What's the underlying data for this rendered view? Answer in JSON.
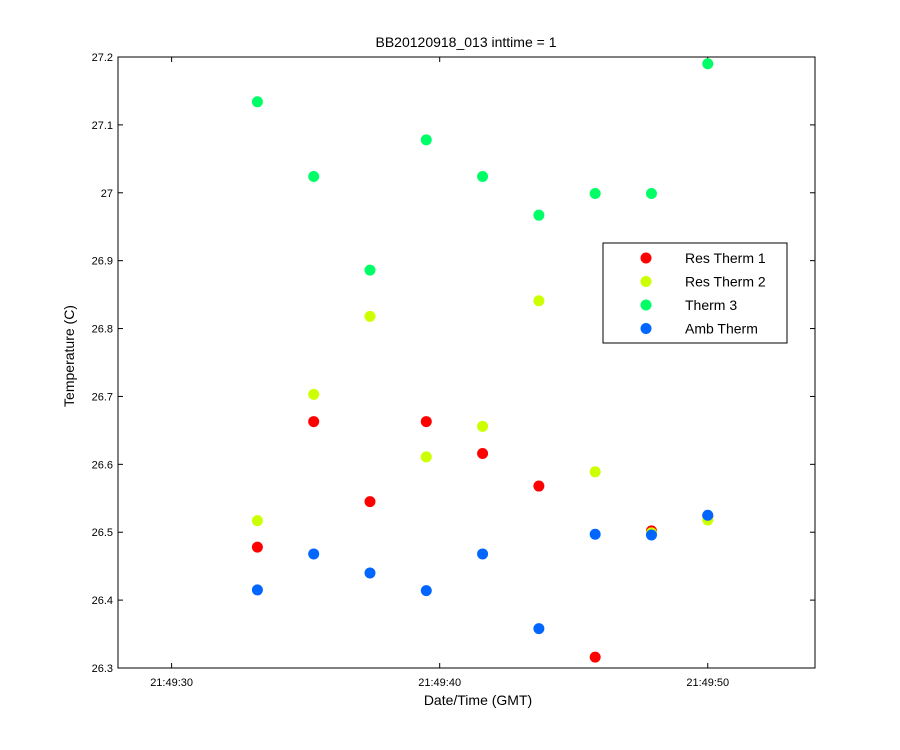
{
  "chart_data": {
    "type": "scatter",
    "title": "BB20120918_013 inttime = 1",
    "xlabel": "Date/Time (GMT)",
    "ylabel": "Temperature (C)",
    "xlim": [
      "21:49:28",
      "21:49:54"
    ],
    "ylim": [
      26.3,
      27.2
    ],
    "x_ticks": [
      "21:49:30",
      "21:49:40",
      "21:49:50"
    ],
    "y_ticks": [
      "26.3",
      "26.4",
      "26.5",
      "26.6",
      "26.7",
      "26.8",
      "26.9",
      "27",
      "27.1",
      "27.2"
    ],
    "grid": false,
    "legend_position": "right",
    "x": [
      "21:49:33.2",
      "21:49:35.3",
      "21:49:37.4",
      "21:49:39.5",
      "21:49:41.6",
      "21:49:43.7",
      "21:49:45.8",
      "21:49:47.9",
      "21:49:50.0"
    ],
    "series": [
      {
        "name": "Res Therm 1",
        "color": "#ff0000",
        "values": [
          26.478,
          26.663,
          26.545,
          26.663,
          26.616,
          26.568,
          26.316,
          26.502,
          26.524
        ]
      },
      {
        "name": "Res Therm 2",
        "color": "#ccff00",
        "values": [
          26.517,
          26.703,
          26.818,
          26.611,
          26.656,
          26.841,
          26.589,
          26.499,
          26.518
        ]
      },
      {
        "name": "Therm 3",
        "color": "#00ff66",
        "values": [
          27.134,
          27.024,
          26.886,
          27.078,
          27.024,
          26.967,
          26.999,
          26.999,
          27.19
        ]
      },
      {
        "name": "Amb Therm",
        "color": "#0066ff",
        "values": [
          26.415,
          26.468,
          26.44,
          26.414,
          26.468,
          26.358,
          26.497,
          26.496,
          26.525
        ]
      }
    ]
  }
}
